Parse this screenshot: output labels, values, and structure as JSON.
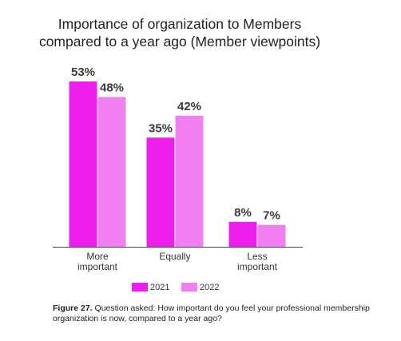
{
  "chart_data": {
    "type": "bar",
    "title_lines": [
      "Importance of organization to Members",
      "compared to a year ago (Member viewpoints)"
    ],
    "categories": [
      [
        "More",
        "important"
      ],
      [
        "Equally"
      ],
      [
        "Less",
        "important"
      ]
    ],
    "series": [
      {
        "name": "2021",
        "color": "#EE1FEE",
        "values": [
          53,
          35,
          8
        ],
        "labels": [
          "53%",
          "35%",
          "8%"
        ]
      },
      {
        "name": "2022",
        "color": "#F27FF2",
        "values": [
          48,
          42,
          7
        ],
        "labels": [
          "48%",
          "42%",
          "7%"
        ]
      }
    ],
    "ylim": [
      0,
      53
    ],
    "grid": false,
    "legend_position": "bottom"
  },
  "caption": {
    "label": "Figure 27.",
    "text": " Question asked: How important do you feel your professional membership organization is now, compared to a year ago?"
  }
}
